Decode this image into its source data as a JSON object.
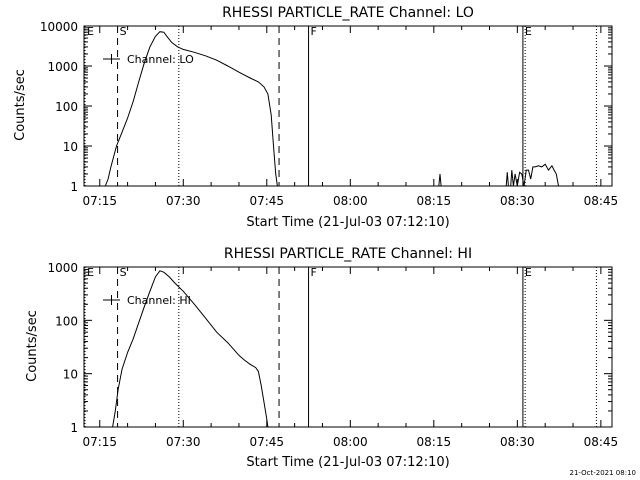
{
  "footer_timestamp": "21-Oct-2021 08:10",
  "chart_data": [
    {
      "type": "line",
      "title": "RHESSI PARTICLE_RATE Channel: LO",
      "xlabel": "Start Time (21-Jul-03 07:12:10)",
      "ylabel": "Counts/sec",
      "yscale": "log",
      "ylim": [
        1,
        10000
      ],
      "xlim_min": [
        12.17,
        107
      ],
      "y_ticks": [
        {
          "v": 1,
          "label": "1"
        },
        {
          "v": 10,
          "label": "10"
        },
        {
          "v": 100,
          "label": "100"
        },
        {
          "v": 1000,
          "label": "1000"
        },
        {
          "v": 10000,
          "label": "10000"
        }
      ],
      "x_ticks": [
        {
          "t": 15,
          "label": "07:15"
        },
        {
          "t": 30,
          "label": "07:30"
        },
        {
          "t": 45,
          "label": "07:45"
        },
        {
          "t": 60,
          "label": "08:00"
        },
        {
          "t": 75,
          "label": "08:15"
        },
        {
          "t": 90,
          "label": "08:30"
        },
        {
          "t": 105,
          "label": "08:45"
        }
      ],
      "legend": {
        "label": "Channel: LO",
        "placement": "top-left"
      },
      "markers": [
        {
          "t": 12.35,
          "label": "E",
          "style": "dotted"
        },
        {
          "t": 18.2,
          "label": "S",
          "style": "dashed"
        },
        {
          "t": 29.2,
          "label": "",
          "style": "dotted"
        },
        {
          "t": 47.2,
          "label": "",
          "style": "dashed"
        },
        {
          "t": 52.5,
          "label": "F",
          "style": "solid"
        },
        {
          "t": 91.0,
          "label": "E",
          "style": "solid"
        },
        {
          "t": 91.4,
          "label": "",
          "style": "dotted"
        },
        {
          "t": 104.2,
          "label": "",
          "style": "dotted"
        }
      ],
      "series": [
        {
          "name": "Channel: LO",
          "segments": [
            [
              [
                16.0,
                1
              ],
              [
                16.5,
                1.5
              ],
              [
                17.0,
                3
              ],
              [
                18.0,
                10
              ],
              [
                19.0,
                22
              ],
              [
                20.0,
                50
              ],
              [
                21.0,
                130
              ],
              [
                22.0,
                400
              ],
              [
                23.0,
                1200
              ],
              [
                24.0,
                3000
              ],
              [
                25.0,
                5500
              ],
              [
                25.8,
                7200
              ],
              [
                26.5,
                7000
              ],
              [
                27.2,
                5200
              ],
              [
                28.0,
                3800
              ],
              [
                29.0,
                3000
              ],
              [
                30.0,
                2600
              ],
              [
                32.0,
                2200
              ],
              [
                34.0,
                1800
              ],
              [
                36.0,
                1400
              ],
              [
                38.0,
                1000
              ],
              [
                40.0,
                700
              ],
              [
                42.0,
                500
              ],
              [
                43.5,
                400
              ],
              [
                44.5,
                300
              ],
              [
                45.2,
                200
              ],
              [
                45.8,
                60
              ],
              [
                46.2,
                10
              ],
              [
                46.6,
                2
              ],
              [
                46.9,
                1
              ]
            ],
            [
              [
                75.9,
                1
              ],
              [
                76.1,
                2
              ],
              [
                76.3,
                1
              ]
            ],
            [
              [
                88.0,
                1
              ],
              [
                88.2,
                2.2
              ],
              [
                88.4,
                1
              ]
            ],
            [
              [
                88.8,
                1
              ],
              [
                89.0,
                2.5
              ],
              [
                89.3,
                1
              ],
              [
                89.6,
                2
              ],
              [
                90.0,
                1
              ],
              [
                90.4,
                2.2
              ],
              [
                90.8,
                2
              ],
              [
                91.2,
                1
              ],
              [
                91.6,
                2.5
              ],
              [
                92.0,
                2.5
              ],
              [
                92.4,
                1.5
              ],
              [
                92.8,
                3
              ],
              [
                93.2,
                3
              ],
              [
                93.8,
                3.2
              ],
              [
                94.4,
                3
              ],
              [
                95.0,
                3.5
              ],
              [
                95.6,
                2.5
              ],
              [
                96.2,
                3.2
              ],
              [
                96.6,
                2.5
              ],
              [
                97.0,
                2
              ],
              [
                97.4,
                1
              ]
            ]
          ]
        }
      ]
    },
    {
      "type": "line",
      "title": "RHESSI PARTICLE_RATE Channel: HI",
      "xlabel": "Start Time (21-Jul-03 07:12:10)",
      "ylabel": "Counts/sec",
      "yscale": "log",
      "ylim": [
        1,
        1000
      ],
      "xlim_min": [
        12.17,
        107
      ],
      "y_ticks": [
        {
          "v": 1,
          "label": "1"
        },
        {
          "v": 10,
          "label": "10"
        },
        {
          "v": 100,
          "label": "100"
        },
        {
          "v": 1000,
          "label": "1000"
        }
      ],
      "x_ticks": [
        {
          "t": 15,
          "label": "07:15"
        },
        {
          "t": 30,
          "label": "07:30"
        },
        {
          "t": 45,
          "label": "07:45"
        },
        {
          "t": 60,
          "label": "08:00"
        },
        {
          "t": 75,
          "label": "08:15"
        },
        {
          "t": 90,
          "label": "08:30"
        },
        {
          "t": 105,
          "label": "08:45"
        }
      ],
      "legend": {
        "label": "Channel: HI",
        "placement": "top-left"
      },
      "markers": [
        {
          "t": 12.35,
          "label": "E",
          "style": "dotted"
        },
        {
          "t": 18.2,
          "label": "S",
          "style": "dashed"
        },
        {
          "t": 29.2,
          "label": "",
          "style": "dotted"
        },
        {
          "t": 47.2,
          "label": "",
          "style": "dashed"
        },
        {
          "t": 52.5,
          "label": "F",
          "style": "solid"
        },
        {
          "t": 91.0,
          "label": "E",
          "style": "solid"
        },
        {
          "t": 91.4,
          "label": "",
          "style": "dotted"
        },
        {
          "t": 104.2,
          "label": "",
          "style": "dotted"
        }
      ],
      "series": [
        {
          "name": "Channel: HI",
          "segments": [
            [
              [
                17.3,
                1
              ],
              [
                17.8,
                2
              ],
              [
                18.3,
                5
              ],
              [
                19.0,
                12
              ],
              [
                20.0,
                25
              ],
              [
                21.0,
                45
              ],
              [
                22.0,
                90
              ],
              [
                23.0,
                180
              ],
              [
                24.0,
                350
              ],
              [
                25.0,
                650
              ],
              [
                25.8,
                850
              ],
              [
                26.5,
                800
              ],
              [
                27.5,
                650
              ],
              [
                28.5,
                500
              ],
              [
                30.0,
                350
              ],
              [
                32.0,
                200
              ],
              [
                34.0,
                110
              ],
              [
                36.0,
                60
              ],
              [
                38.0,
                38
              ],
              [
                40.0,
                22
              ],
              [
                41.0,
                18
              ],
              [
                42.0,
                15
              ],
              [
                42.5,
                14
              ],
              [
                43.0,
                13
              ],
              [
                43.5,
                11
              ],
              [
                44.0,
                6
              ],
              [
                44.6,
                2.5
              ],
              [
                45.0,
                1.4
              ],
              [
                45.2,
                1
              ]
            ]
          ]
        }
      ]
    }
  ]
}
